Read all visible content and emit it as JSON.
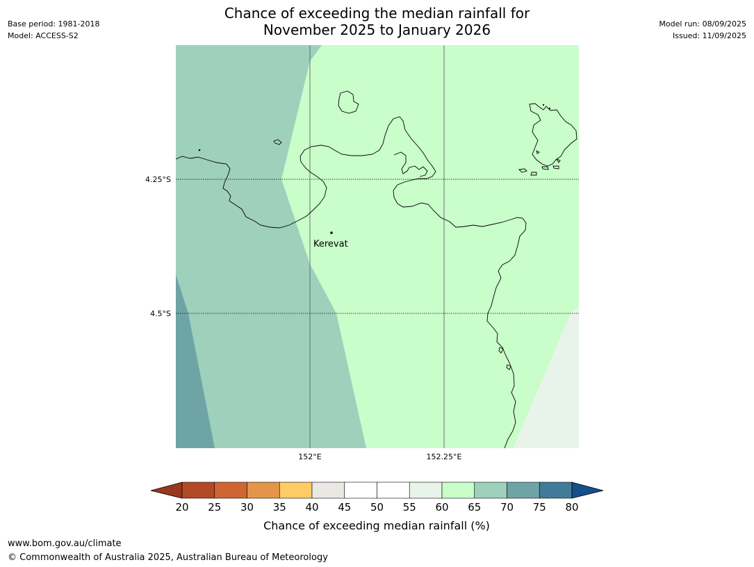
{
  "title": {
    "line1": "Chance of exceeding the median rainfall for",
    "line2": "November 2025 to January 2026"
  },
  "meta_left": {
    "base_period": "Base period: 1981-2018",
    "model": "Model: ACCESS-S2"
  },
  "meta_right": {
    "model_run": "Model run: 08/09/2025",
    "issued": "Issued: 11/09/2025"
  },
  "map": {
    "lat_labels": [
      "4.25°S",
      "4.5°S"
    ],
    "lon_labels": [
      "152°E",
      "152.25°E"
    ],
    "place": "Kerevat",
    "region_colors": {
      "band_70_75": "#6fa4a7",
      "band_65_70": "#9ed0bb",
      "band_60_65": "#c9fdca",
      "band_55_60": "#e8f4e9"
    }
  },
  "colorbar": {
    "label": "Chance of exceeding median rainfall (%)",
    "ticks": [
      "20",
      "25",
      "30",
      "35",
      "40",
      "45",
      "50",
      "55",
      "60",
      "65",
      "70",
      "75",
      "80"
    ],
    "under_color": "#983820",
    "over_color": "#164f89",
    "colors": [
      "#b24a25",
      "#cf6631",
      "#e3964a",
      "#ffcb66",
      "#e9e8e3",
      "#ffffff",
      "#ffffff",
      "#e8f4e9",
      "#c9fdca",
      "#9ed0bb",
      "#6fa4a7",
      "#417b99"
    ]
  },
  "footer": {
    "url": "www.bom.gov.au/climate",
    "copyright": "© Commonwealth of Australia 2025, Australian Bureau of Meteorology"
  }
}
